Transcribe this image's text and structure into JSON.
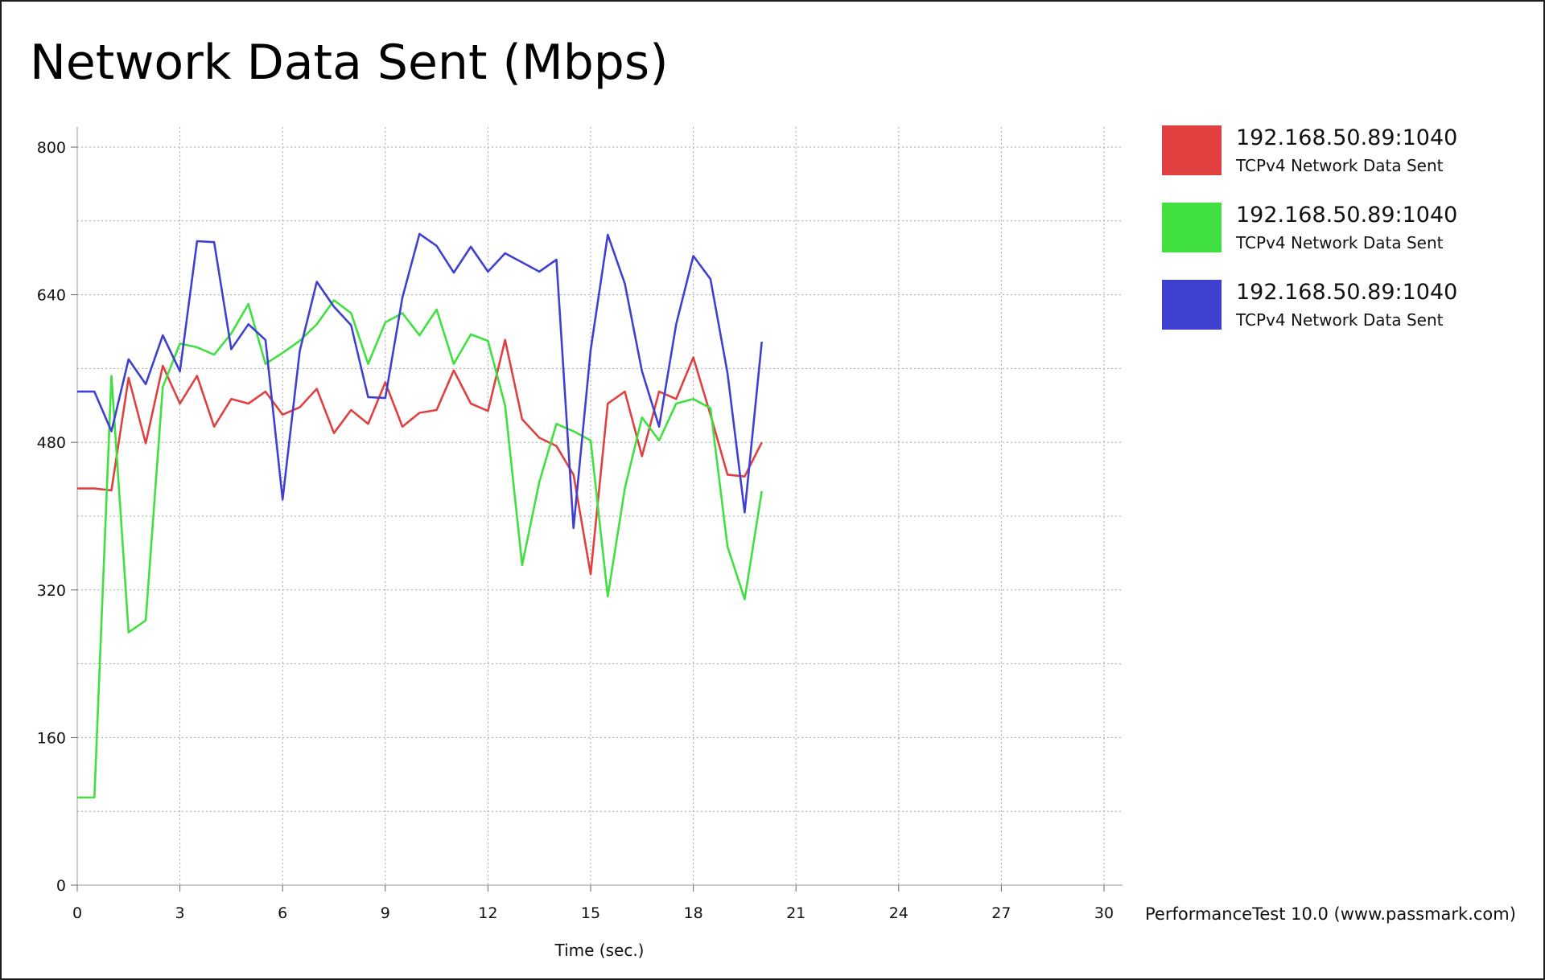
{
  "footer": {
    "credit": "PerformanceTest 10.0 (www.passmark.com)"
  },
  "chart_data": {
    "type": "line",
    "title": "Network Data Sent (Mbps)",
    "xlabel": "Time (sec.)",
    "ylabel": "",
    "xlim": [
      0,
      30
    ],
    "ylim": [
      0,
      800
    ],
    "x_ticks": [
      "0",
      "3",
      "6",
      "9",
      "12",
      "15",
      "18",
      "21",
      "24",
      "27",
      "30"
    ],
    "y_ticks": [
      "0",
      "160",
      "320",
      "480",
      "640",
      "800"
    ],
    "grid": true,
    "legend_position": "right",
    "series": [
      {
        "name": "192.168.50.89:1040",
        "description": "TCPv4 Network Data Sent",
        "color": "#e04040",
        "points": [
          [
            0,
            430
          ],
          [
            0.5,
            430
          ],
          [
            1,
            428
          ],
          [
            1.5,
            550
          ],
          [
            2,
            479
          ],
          [
            2.5,
            563
          ],
          [
            3,
            522
          ],
          [
            3.5,
            552
          ],
          [
            4,
            497
          ],
          [
            4.5,
            527
          ],
          [
            5,
            522
          ],
          [
            5.5,
            535
          ],
          [
            6,
            510
          ],
          [
            6.5,
            518
          ],
          [
            7,
            538
          ],
          [
            7.5,
            490
          ],
          [
            8,
            515
          ],
          [
            8.5,
            500
          ],
          [
            9,
            545
          ],
          [
            9.5,
            497
          ],
          [
            10,
            512
          ],
          [
            10.5,
            515
          ],
          [
            11,
            558
          ],
          [
            11.5,
            522
          ],
          [
            12,
            514
          ],
          [
            12.5,
            591
          ],
          [
            13,
            505
          ],
          [
            13.5,
            485
          ],
          [
            14,
            476
          ],
          [
            14.5,
            445
          ],
          [
            15,
            337
          ],
          [
            15.5,
            522
          ],
          [
            16,
            535
          ],
          [
            16.5,
            465
          ],
          [
            17,
            535
          ],
          [
            17.5,
            527
          ],
          [
            18,
            572
          ],
          [
            18.5,
            510
          ],
          [
            19,
            445
          ],
          [
            19.5,
            443
          ],
          [
            20,
            480
          ]
        ]
      },
      {
        "name": "192.168.50.89:1040",
        "description": "TCPv4 Network Data Sent",
        "color": "#40e040",
        "points": [
          [
            0,
            95
          ],
          [
            0.5,
            95
          ],
          [
            1,
            552
          ],
          [
            1.5,
            274
          ],
          [
            2,
            287
          ],
          [
            2.5,
            540
          ],
          [
            3,
            587
          ],
          [
            3.5,
            583
          ],
          [
            4,
            575
          ],
          [
            4.5,
            598
          ],
          [
            5,
            630
          ],
          [
            5.5,
            565
          ],
          [
            6,
            577
          ],
          [
            6.5,
            590
          ],
          [
            7,
            608
          ],
          [
            7.5,
            634
          ],
          [
            8,
            620
          ],
          [
            8.5,
            565
          ],
          [
            9,
            610
          ],
          [
            9.5,
            620
          ],
          [
            10,
            596
          ],
          [
            10.5,
            624
          ],
          [
            11,
            565
          ],
          [
            11.5,
            597
          ],
          [
            12,
            590
          ],
          [
            12.5,
            520
          ],
          [
            13,
            347
          ],
          [
            13.5,
            437
          ],
          [
            14,
            500
          ],
          [
            14.5,
            492
          ],
          [
            15,
            482
          ],
          [
            15.5,
            313
          ],
          [
            16,
            430
          ],
          [
            16.5,
            507
          ],
          [
            17,
            482
          ],
          [
            17.5,
            522
          ],
          [
            18,
            527
          ],
          [
            18.5,
            517
          ],
          [
            19,
            367
          ],
          [
            19.5,
            310
          ],
          [
            20,
            427
          ]
        ]
      },
      {
        "name": "192.168.50.89:1040",
        "description": "TCPv4 Network Data Sent",
        "color": "#4040d0",
        "points": [
          [
            0,
            535
          ],
          [
            0.5,
            535
          ],
          [
            1,
            492
          ],
          [
            1.5,
            570
          ],
          [
            2,
            543
          ],
          [
            2.5,
            596
          ],
          [
            3,
            557
          ],
          [
            3.5,
            698
          ],
          [
            4,
            697
          ],
          [
            4.5,
            581
          ],
          [
            5,
            608
          ],
          [
            5.5,
            591
          ],
          [
            6,
            418
          ],
          [
            6.5,
            579
          ],
          [
            7,
            654
          ],
          [
            7.5,
            627
          ],
          [
            8,
            607
          ],
          [
            8.5,
            529
          ],
          [
            9,
            528
          ],
          [
            9.5,
            637
          ],
          [
            10,
            706
          ],
          [
            10.5,
            693
          ],
          [
            11,
            664
          ],
          [
            11.5,
            692
          ],
          [
            12,
            665
          ],
          [
            12.5,
            685
          ],
          [
            13,
            675
          ],
          [
            13.5,
            665
          ],
          [
            14,
            678
          ],
          [
            14.5,
            387
          ],
          [
            15,
            580
          ],
          [
            15.5,
            705
          ],
          [
            16,
            652
          ],
          [
            16.5,
            557
          ],
          [
            17,
            497
          ],
          [
            17.5,
            608
          ],
          [
            18,
            682
          ],
          [
            18.5,
            657
          ],
          [
            19,
            555
          ],
          [
            19.5,
            404
          ],
          [
            20,
            589
          ]
        ]
      }
    ]
  }
}
